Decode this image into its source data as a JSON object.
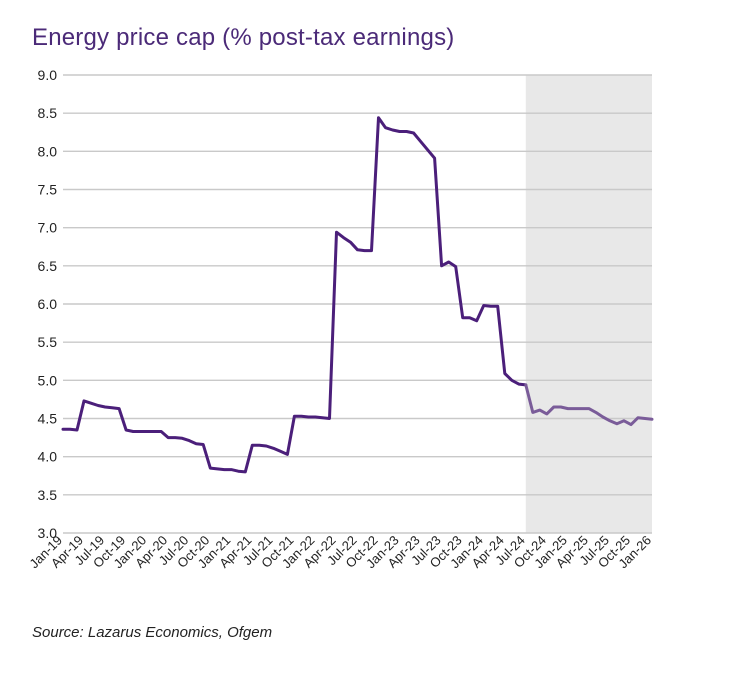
{
  "chart_data": {
    "type": "line",
    "title": "Energy price cap (% post-tax earnings)",
    "source": "Source: Lazarus Economics, Ofgem",
    "ylim": [
      3.0,
      9.0
    ],
    "yticks": [
      "3.0",
      "3.5",
      "4.0",
      "4.5",
      "5.0",
      "5.5",
      "6.0",
      "6.5",
      "7.0",
      "7.5",
      "8.0",
      "8.5",
      "9.0"
    ],
    "xtick_labels": [
      "Jan-19",
      "Apr-19",
      "Jul-19",
      "Oct-19",
      "Jan-20",
      "Apr-20",
      "Jul-20",
      "Oct-20",
      "Jan-21",
      "Apr-21",
      "Jul-21",
      "Oct-21",
      "Jan-22",
      "Apr-22",
      "Jul-22",
      "Oct-22",
      "Jan-23",
      "Apr-23",
      "Jul-23",
      "Oct-23",
      "Jan-24",
      "Apr-24",
      "Jul-24",
      "Oct-24",
      "Jan-25",
      "Apr-25",
      "Jul-25",
      "Oct-25",
      "Jan-26"
    ],
    "forecast_shading_from": "Jul-24",
    "grid": true,
    "series": [
      {
        "color": "#4b1f7a",
        "x": [
          "Jan-19",
          "Feb-19",
          "Mar-19",
          "Apr-19",
          "May-19",
          "Jun-19",
          "Jul-19",
          "Aug-19",
          "Sep-19",
          "Oct-19",
          "Nov-19",
          "Dec-19",
          "Jan-20",
          "Feb-20",
          "Mar-20",
          "Apr-20",
          "May-20",
          "Jun-20",
          "Jul-20",
          "Aug-20",
          "Sep-20",
          "Oct-20",
          "Nov-20",
          "Dec-20",
          "Jan-21",
          "Feb-21",
          "Mar-21",
          "Apr-21",
          "May-21",
          "Jun-21",
          "Jul-21",
          "Aug-21",
          "Sep-21",
          "Oct-21",
          "Nov-21",
          "Dec-21",
          "Jan-22",
          "Feb-22",
          "Mar-22",
          "Apr-22",
          "May-22",
          "Jun-22",
          "Jul-22",
          "Aug-22",
          "Sep-22",
          "Oct-22",
          "Nov-22",
          "Dec-22",
          "Jan-23",
          "Feb-23",
          "Mar-23",
          "Apr-23",
          "May-23",
          "Jun-23",
          "Jul-23",
          "Aug-23",
          "Sep-23",
          "Oct-23",
          "Nov-23",
          "Dec-23",
          "Jan-24",
          "Feb-24",
          "Mar-24",
          "Apr-24",
          "May-24",
          "Jun-24",
          "Jul-24"
        ],
        "y": [
          4.36,
          4.36,
          4.35,
          4.73,
          4.7,
          4.67,
          4.65,
          4.64,
          4.63,
          4.35,
          4.33,
          4.33,
          4.33,
          4.33,
          4.33,
          4.25,
          4.25,
          4.24,
          4.21,
          4.17,
          4.16,
          3.85,
          3.84,
          3.83,
          3.83,
          3.81,
          3.8,
          4.15,
          4.15,
          4.14,
          4.11,
          4.07,
          4.03,
          4.53,
          4.53,
          4.52,
          4.52,
          4.51,
          4.5,
          6.94,
          6.87,
          6.81,
          6.71,
          6.7,
          6.7,
          8.44,
          8.31,
          8.28,
          8.26,
          8.26,
          8.24,
          8.13,
          8.02,
          7.91,
          6.5,
          6.55,
          6.49,
          5.82,
          5.82,
          5.78,
          5.98,
          5.97,
          5.97,
          5.09,
          5.0,
          4.95,
          4.94
        ]
      },
      {
        "color": "#7a5c99",
        "x": [
          "Jul-24",
          "Aug-24",
          "Sep-24",
          "Oct-24",
          "Nov-24",
          "Dec-24",
          "Jan-25",
          "Feb-25",
          "Mar-25",
          "Apr-25",
          "May-25",
          "Jun-25",
          "Jul-25",
          "Aug-25",
          "Sep-25",
          "Oct-25",
          "Nov-25",
          "Dec-25",
          "Jan-26"
        ],
        "y": [
          4.94,
          4.58,
          4.61,
          4.56,
          4.65,
          4.65,
          4.63,
          4.63,
          4.63,
          4.63,
          4.58,
          4.52,
          4.47,
          4.43,
          4.47,
          4.42,
          4.51,
          4.5,
          4.49
        ]
      }
    ]
  }
}
